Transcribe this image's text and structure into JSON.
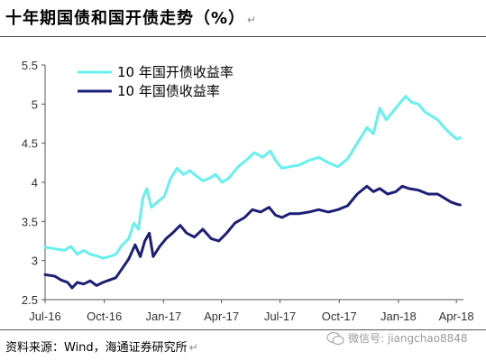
{
  "title": "十年期国债和国开债走势（%）",
  "title_mark": "↵",
  "source": "资料来源：Wind，海通证券研究所",
  "source_mark": "↵",
  "watermark": {
    "text": "微信号: jiangchao8848",
    "icon": "wechat-icon"
  },
  "chart_data": {
    "type": "line",
    "title": "十年期国债和国开债走势（%）",
    "ylim": [
      2.5,
      5.5
    ],
    "y_ticks": [
      "2.5",
      "3",
      "3.5",
      "4",
      "4.5",
      "5",
      "5.5"
    ],
    "x_ticks": [
      {
        "label": "Jul-16",
        "t": 0
      },
      {
        "label": "Oct-16",
        "t": 92
      },
      {
        "label": "Jan-17",
        "t": 184
      },
      {
        "label": "Apr-17",
        "t": 274
      },
      {
        "label": "Jul-17",
        "t": 365
      },
      {
        "label": "Oct-17",
        "t": 457
      },
      {
        "label": "Jan-18",
        "t": 549
      },
      {
        "label": "Apr-18",
        "t": 639
      }
    ],
    "x_range": [
      0,
      650
    ],
    "grid": false,
    "legend_position": "top-left",
    "series": [
      {
        "name": "10 年国开债收益率",
        "color": "#66f0ee",
        "points": [
          [
            0,
            3.17
          ],
          [
            15,
            3.15
          ],
          [
            30,
            3.13
          ],
          [
            40,
            3.18
          ],
          [
            50,
            3.08
          ],
          [
            60,
            3.13
          ],
          [
            70,
            3.08
          ],
          [
            80,
            3.06
          ],
          [
            90,
            3.03
          ],
          [
            100,
            3.05
          ],
          [
            110,
            3.08
          ],
          [
            120,
            3.2
          ],
          [
            130,
            3.28
          ],
          [
            138,
            3.48
          ],
          [
            145,
            3.4
          ],
          [
            152,
            3.8
          ],
          [
            158,
            3.92
          ],
          [
            165,
            3.68
          ],
          [
            175,
            3.75
          ],
          [
            185,
            3.82
          ],
          [
            195,
            4.05
          ],
          [
            205,
            4.18
          ],
          [
            215,
            4.1
          ],
          [
            225,
            4.15
          ],
          [
            235,
            4.08
          ],
          [
            245,
            4.02
          ],
          [
            255,
            4.05
          ],
          [
            265,
            4.1
          ],
          [
            275,
            4.0
          ],
          [
            285,
            4.05
          ],
          [
            300,
            4.2
          ],
          [
            315,
            4.3
          ],
          [
            325,
            4.38
          ],
          [
            338,
            4.32
          ],
          [
            350,
            4.4
          ],
          [
            358,
            4.28
          ],
          [
            368,
            4.18
          ],
          [
            380,
            4.2
          ],
          [
            395,
            4.22
          ],
          [
            410,
            4.28
          ],
          [
            425,
            4.32
          ],
          [
            440,
            4.25
          ],
          [
            455,
            4.2
          ],
          [
            470,
            4.3
          ],
          [
            485,
            4.5
          ],
          [
            500,
            4.7
          ],
          [
            510,
            4.62
          ],
          [
            520,
            4.95
          ],
          [
            530,
            4.8
          ],
          [
            540,
            4.9
          ],
          [
            550,
            5.0
          ],
          [
            560,
            5.1
          ],
          [
            570,
            5.02
          ],
          [
            580,
            5.0
          ],
          [
            590,
            4.9
          ],
          [
            600,
            4.85
          ],
          [
            610,
            4.8
          ],
          [
            620,
            4.7
          ],
          [
            630,
            4.62
          ],
          [
            640,
            4.55
          ],
          [
            645,
            4.57
          ]
        ]
      },
      {
        "name": "10 年国债收益率",
        "color": "#1c1e78",
        "points": [
          [
            0,
            2.82
          ],
          [
            15,
            2.8
          ],
          [
            25,
            2.75
          ],
          [
            35,
            2.72
          ],
          [
            42,
            2.65
          ],
          [
            50,
            2.72
          ],
          [
            60,
            2.7
          ],
          [
            70,
            2.74
          ],
          [
            80,
            2.68
          ],
          [
            90,
            2.72
          ],
          [
            100,
            2.75
          ],
          [
            110,
            2.78
          ],
          [
            120,
            2.9
          ],
          [
            130,
            3.02
          ],
          [
            140,
            3.2
          ],
          [
            148,
            3.05
          ],
          [
            155,
            3.25
          ],
          [
            162,
            3.35
          ],
          [
            168,
            3.05
          ],
          [
            178,
            3.18
          ],
          [
            188,
            3.28
          ],
          [
            198,
            3.35
          ],
          [
            210,
            3.45
          ],
          [
            220,
            3.35
          ],
          [
            232,
            3.3
          ],
          [
            245,
            3.4
          ],
          [
            258,
            3.28
          ],
          [
            270,
            3.25
          ],
          [
            282,
            3.35
          ],
          [
            295,
            3.48
          ],
          [
            310,
            3.55
          ],
          [
            322,
            3.65
          ],
          [
            335,
            3.62
          ],
          [
            348,
            3.68
          ],
          [
            358,
            3.58
          ],
          [
            368,
            3.55
          ],
          [
            380,
            3.6
          ],
          [
            395,
            3.6
          ],
          [
            410,
            3.62
          ],
          [
            425,
            3.65
          ],
          [
            440,
            3.62
          ],
          [
            455,
            3.65
          ],
          [
            470,
            3.7
          ],
          [
            485,
            3.85
          ],
          [
            500,
            3.95
          ],
          [
            510,
            3.88
          ],
          [
            520,
            3.92
          ],
          [
            532,
            3.85
          ],
          [
            545,
            3.88
          ],
          [
            555,
            3.95
          ],
          [
            565,
            3.92
          ],
          [
            580,
            3.9
          ],
          [
            595,
            3.85
          ],
          [
            610,
            3.85
          ],
          [
            620,
            3.8
          ],
          [
            630,
            3.75
          ],
          [
            640,
            3.72
          ],
          [
            645,
            3.71
          ]
        ]
      }
    ]
  }
}
